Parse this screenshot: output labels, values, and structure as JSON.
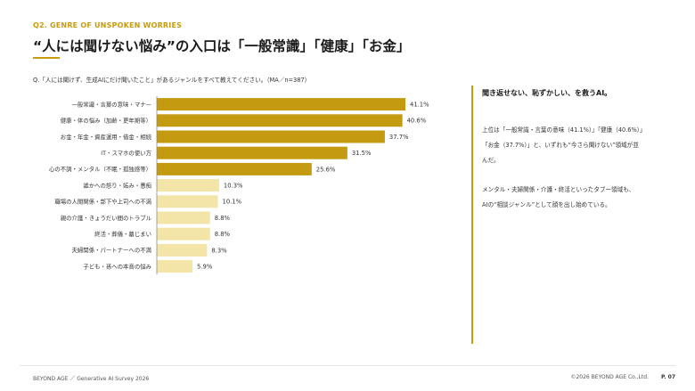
{
  "header": {
    "kicker": "Q2. GENRE OF UNSPOKEN WORRIES",
    "title": "“人には聞けない悩み”の入口は「一般常識」「健康」「お金」"
  },
  "question": "Q.「人には聞けず、生成AIにだけ聞いたこと」があるジャンルをすべて教えてください。（MA／n=387）",
  "chart_data": {
    "type": "bar",
    "orientation": "horizontal",
    "categories": [
      "一般常識・言葉の意味・マナー",
      "健康・体の悩み（加齢・更年期等）",
      "お金・年金・資産運用・借金・相続",
      "IT・スマホの使い方",
      "心の不調・メンタル（不眠・孤独感等）",
      "誰かへの怒り・妬み・愚痴",
      "職場の人間関係・部下や上司への不満",
      "親の介護・きょうだい間のトラブル",
      "終活・葬儀・墓じまい",
      "夫婦関係・パートナーへの不満",
      "子ども・孫への本音の悩み"
    ],
    "values": [
      41.1,
      40.6,
      37.7,
      31.5,
      25.6,
      10.3,
      10.1,
      8.8,
      8.8,
      8.3,
      5.9
    ],
    "value_labels": [
      "41.1%",
      "40.6%",
      "37.7%",
      "31.5%",
      "25.6%",
      "10.3%",
      "10.1%",
      "8.8%",
      "8.8%",
      "8.3%",
      "5.9%"
    ],
    "xlim": [
      0,
      41.1
    ],
    "colors": {
      "highlight": "#c39a10",
      "muted": "#f3e4a8"
    },
    "highlight_count": 5,
    "grid": false
  },
  "panel": {
    "heading": "聞き返せない、恥ずかしい、を救うAI。",
    "body": [
      [
        "上位は「一般常識・言葉の意味（41.1%）」「健康（40.6%）」",
        "「お金（37.7%）」と、いずれも“今さら聞けない”領域が並",
        "んだ。"
      ],
      [
        "メンタル・夫婦関係・介護・終活といったタブー領域も、",
        "AIの“相談ジャンル”として顔を出し始めている。"
      ]
    ]
  },
  "footer": {
    "left": "BEYOND AGE ／ Generative AI Survey 2026",
    "right": "©2026 BEYOND AGE Co.,Ltd.",
    "page": "P. 07"
  }
}
